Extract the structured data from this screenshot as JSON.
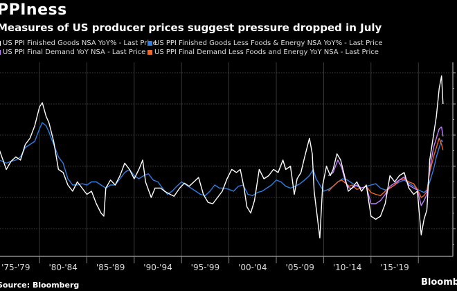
{
  "header": {
    "title": "PPIness",
    "subtitle": "Measures of US producer prices suggest pressure dropped in July"
  },
  "legend": [
    {
      "label": "US PPI Finished Goods NSA YoY% - Last Price",
      "color": "#ffffff"
    },
    {
      "label": "US PPI Final Demand YoY NSA - Last Price",
      "color": "#c77dff"
    },
    {
      "label": "US PPI Finished Goods Less Foods & Energy NSA YoY% - Last Price",
      "color": "#2f7fe0"
    },
    {
      "label": "US PPI Final Demand Less Foods and Energy YoY NSA - Last Price",
      "color": "#f26522"
    }
  ],
  "footer": {
    "source": "Source: Bloomberg",
    "brand": "Bloomberg"
  },
  "chart_data": {
    "type": "line",
    "title": "PPIness",
    "subtitle": "Measures of US producer prices suggest pressure dropped in July",
    "xlabel": "",
    "ylabel": "",
    "x_tick_labels": [
      "'75-'79",
      "'80-'84",
      "'85-'89",
      "'90-'94",
      "'95-'99",
      "'00-'04",
      "'05-'09",
      "'10-'14",
      "'15-'19"
    ],
    "xlim": [
      1975.8,
      2022.6
    ],
    "ylim": [
      -10,
      22
    ],
    "y_gridlines": [
      -5,
      0,
      5,
      10,
      15,
      20
    ],
    "grid": true,
    "legend_position": "top",
    "series": [
      {
        "name": "US PPI Finished Goods NSA YoY% - Last Price",
        "color": "#ffffff",
        "points": [
          [
            1975.8,
            7.5
          ],
          [
            1976.5,
            4.5
          ],
          [
            1977.0,
            5.8
          ],
          [
            1977.5,
            6.5
          ],
          [
            1978.0,
            6.0
          ],
          [
            1978.5,
            8.5
          ],
          [
            1979.0,
            9.5
          ],
          [
            1979.5,
            11.5
          ],
          [
            1980.0,
            14.5
          ],
          [
            1980.3,
            15.2
          ],
          [
            1980.7,
            13.0
          ],
          [
            1981.0,
            12.0
          ],
          [
            1981.5,
            9.0
          ],
          [
            1982.0,
            4.5
          ],
          [
            1982.5,
            4.0
          ],
          [
            1983.0,
            2.0
          ],
          [
            1983.5,
            1.0
          ],
          [
            1984.0,
            2.5
          ],
          [
            1984.5,
            1.5
          ],
          [
            1985.0,
            0.5
          ],
          [
            1985.5,
            1.0
          ],
          [
            1986.0,
            -1.0
          ],
          [
            1986.5,
            -2.5
          ],
          [
            1986.8,
            -3.0
          ],
          [
            1987.0,
            1.5
          ],
          [
            1987.5,
            2.8
          ],
          [
            1988.0,
            2.0
          ],
          [
            1988.5,
            3.5
          ],
          [
            1989.0,
            5.5
          ],
          [
            1989.5,
            4.5
          ],
          [
            1990.0,
            3.0
          ],
          [
            1990.5,
            4.5
          ],
          [
            1990.9,
            6.0
          ],
          [
            1991.2,
            2.5
          ],
          [
            1991.8,
            0.0
          ],
          [
            1992.2,
            1.5
          ],
          [
            1992.8,
            1.5
          ],
          [
            1993.2,
            1.0
          ],
          [
            1993.8,
            0.5
          ],
          [
            1994.2,
            0.2
          ],
          [
            1994.8,
            1.5
          ],
          [
            1995.3,
            2.3
          ],
          [
            1995.8,
            1.8
          ],
          [
            1996.3,
            2.5
          ],
          [
            1996.8,
            3.2
          ],
          [
            1997.3,
            0.5
          ],
          [
            1997.8,
            -0.8
          ],
          [
            1998.3,
            -1.0
          ],
          [
            1998.8,
            0.0
          ],
          [
            1999.3,
            1.0
          ],
          [
            1999.8,
            3.0
          ],
          [
            2000.3,
            4.5
          ],
          [
            2000.8,
            4.0
          ],
          [
            2001.2,
            4.5
          ],
          [
            2001.6,
            1.5
          ],
          [
            2001.9,
            -1.5
          ],
          [
            2002.3,
            -2.5
          ],
          [
            2002.7,
            -0.5
          ],
          [
            2003.2,
            4.5
          ],
          [
            2003.7,
            3.0
          ],
          [
            2004.2,
            3.5
          ],
          [
            2004.7,
            4.5
          ],
          [
            2005.2,
            4.0
          ],
          [
            2005.7,
            6.0
          ],
          [
            2006.0,
            4.5
          ],
          [
            2006.5,
            5.0
          ],
          [
            2006.9,
            0.5
          ],
          [
            2007.2,
            3.0
          ],
          [
            2007.6,
            4.0
          ],
          [
            2008.0,
            6.5
          ],
          [
            2008.5,
            9.5
          ],
          [
            2008.8,
            7.0
          ],
          [
            2009.0,
            1.0
          ],
          [
            2009.4,
            -4.0
          ],
          [
            2009.6,
            -6.5
          ],
          [
            2009.9,
            2.0
          ],
          [
            2010.3,
            5.0
          ],
          [
            2010.7,
            3.5
          ],
          [
            2011.0,
            4.5
          ],
          [
            2011.4,
            7.0
          ],
          [
            2011.8,
            6.0
          ],
          [
            2012.2,
            3.5
          ],
          [
            2012.6,
            1.0
          ],
          [
            2013.0,
            1.5
          ],
          [
            2013.5,
            2.5
          ],
          [
            2014.0,
            1.0
          ],
          [
            2014.5,
            2.0
          ],
          [
            2015.0,
            -3.0
          ],
          [
            2015.5,
            -3.5
          ],
          [
            2016.0,
            -3.0
          ],
          [
            2016.5,
            -1.0
          ],
          [
            2017.0,
            3.5
          ],
          [
            2017.5,
            2.5
          ],
          [
            2018.0,
            3.5
          ],
          [
            2018.5,
            4.0
          ],
          [
            2019.0,
            1.5
          ],
          [
            2019.5,
            0.5
          ],
          [
            2019.9,
            1.0
          ],
          [
            2020.3,
            -6.0
          ],
          [
            2020.6,
            -3.5
          ],
          [
            2020.9,
            -2.0
          ],
          [
            2021.2,
            6.0
          ],
          [
            2021.6,
            10.0
          ],
          [
            2021.9,
            13.0
          ],
          [
            2022.2,
            17.5
          ],
          [
            2022.45,
            19.5
          ],
          [
            2022.6,
            15.0
          ]
        ]
      },
      {
        "name": "US PPI Final Demand YoY NSA - Last Price",
        "color": "#c77dff",
        "points": [
          [
            2010.5,
            3.5
          ],
          [
            2011.0,
            4.0
          ],
          [
            2011.5,
            6.0
          ],
          [
            2011.9,
            4.8
          ],
          [
            2012.3,
            2.5
          ],
          [
            2012.7,
            1.5
          ],
          [
            2013.0,
            1.5
          ],
          [
            2013.5,
            2.0
          ],
          [
            2014.0,
            1.5
          ],
          [
            2014.5,
            1.8
          ],
          [
            2015.0,
            -1.0
          ],
          [
            2015.5,
            -1.0
          ],
          [
            2016.0,
            -0.5
          ],
          [
            2016.5,
            0.5
          ],
          [
            2017.0,
            1.8
          ],
          [
            2017.5,
            2.3
          ],
          [
            2018.0,
            2.8
          ],
          [
            2018.5,
            3.3
          ],
          [
            2019.0,
            2.0
          ],
          [
            2019.5,
            1.5
          ],
          [
            2019.9,
            1.2
          ],
          [
            2020.3,
            -1.3
          ],
          [
            2020.6,
            -0.5
          ],
          [
            2020.9,
            0.5
          ],
          [
            2021.2,
            4.5
          ],
          [
            2021.6,
            8.0
          ],
          [
            2021.9,
            9.5
          ],
          [
            2022.2,
            11.0
          ],
          [
            2022.45,
            11.3
          ],
          [
            2022.6,
            9.8
          ]
        ]
      },
      {
        "name": "US PPI Finished Goods Less Foods & Energy NSA YoY% - Last Price",
        "color": "#2f7fe0",
        "points": [
          [
            1975.8,
            6.0
          ],
          [
            1976.5,
            5.5
          ],
          [
            1977.0,
            5.8
          ],
          [
            1977.5,
            6.0
          ],
          [
            1978.0,
            6.5
          ],
          [
            1978.5,
            8.0
          ],
          [
            1979.0,
            8.5
          ],
          [
            1979.5,
            9.0
          ],
          [
            1980.0,
            11.0
          ],
          [
            1980.3,
            12.0
          ],
          [
            1980.7,
            11.5
          ],
          [
            1981.0,
            10.5
          ],
          [
            1981.5,
            8.5
          ],
          [
            1982.0,
            6.5
          ],
          [
            1982.5,
            5.5
          ],
          [
            1983.0,
            3.0
          ],
          [
            1983.5,
            2.0
          ],
          [
            1984.0,
            2.0
          ],
          [
            1984.5,
            2.2
          ],
          [
            1985.0,
            2.0
          ],
          [
            1985.5,
            2.5
          ],
          [
            1986.0,
            2.5
          ],
          [
            1986.5,
            2.0
          ],
          [
            1987.0,
            1.5
          ],
          [
            1987.5,
            2.0
          ],
          [
            1988.0,
            2.0
          ],
          [
            1988.5,
            3.0
          ],
          [
            1989.0,
            4.0
          ],
          [
            1989.5,
            4.5
          ],
          [
            1990.0,
            3.5
          ],
          [
            1990.5,
            3.0
          ],
          [
            1991.0,
            3.5
          ],
          [
            1991.5,
            3.8
          ],
          [
            1992.0,
            2.8
          ],
          [
            1992.5,
            2.5
          ],
          [
            1993.0,
            1.5
          ],
          [
            1993.5,
            0.5
          ],
          [
            1994.0,
            1.0
          ],
          [
            1994.5,
            1.8
          ],
          [
            1995.0,
            2.5
          ],
          [
            1995.5,
            2.0
          ],
          [
            1996.0,
            1.5
          ],
          [
            1996.5,
            1.0
          ],
          [
            1997.0,
            0.5
          ],
          [
            1997.5,
            0.3
          ],
          [
            1998.0,
            1.0
          ],
          [
            1998.5,
            2.0
          ],
          [
            1999.0,
            1.5
          ],
          [
            1999.5,
            1.5
          ],
          [
            2000.0,
            1.3
          ],
          [
            2000.5,
            1.0
          ],
          [
            2001.0,
            1.8
          ],
          [
            2001.5,
            2.0
          ],
          [
            2002.0,
            0.5
          ],
          [
            2002.5,
            0.3
          ],
          [
            2003.0,
            0.8
          ],
          [
            2003.5,
            1.0
          ],
          [
            2004.0,
            1.5
          ],
          [
            2004.5,
            2.0
          ],
          [
            2005.0,
            2.8
          ],
          [
            2005.5,
            2.5
          ],
          [
            2006.0,
            1.8
          ],
          [
            2006.5,
            1.5
          ],
          [
            2007.0,
            1.8
          ],
          [
            2007.5,
            2.2
          ],
          [
            2008.0,
            2.8
          ],
          [
            2008.5,
            3.5
          ],
          [
            2008.9,
            4.5
          ],
          [
            2009.2,
            3.0
          ],
          [
            2009.6,
            2.0
          ],
          [
            2010.0,
            1.0
          ],
          [
            2010.5,
            1.3
          ],
          [
            2011.0,
            1.8
          ],
          [
            2011.5,
            2.5
          ],
          [
            2012.0,
            3.0
          ],
          [
            2012.5,
            2.8
          ],
          [
            2013.0,
            2.3
          ],
          [
            2013.5,
            1.8
          ],
          [
            2014.0,
            1.5
          ],
          [
            2014.5,
            1.8
          ],
          [
            2015.0,
            2.0
          ],
          [
            2015.5,
            2.2
          ],
          [
            2016.0,
            1.5
          ],
          [
            2016.5,
            1.2
          ],
          [
            2017.0,
            1.5
          ],
          [
            2017.5,
            2.0
          ],
          [
            2018.0,
            2.5
          ],
          [
            2018.5,
            2.8
          ],
          [
            2019.0,
            2.3
          ],
          [
            2019.5,
            1.8
          ],
          [
            2019.9,
            1.3
          ],
          [
            2020.3,
            1.0
          ],
          [
            2020.6,
            0.8
          ],
          [
            2020.9,
            1.2
          ],
          [
            2021.2,
            2.5
          ],
          [
            2021.6,
            4.5
          ],
          [
            2021.9,
            6.5
          ],
          [
            2022.2,
            8.0
          ],
          [
            2022.45,
            9.2
          ],
          [
            2022.6,
            8.9
          ]
        ]
      },
      {
        "name": "US PPI Final Demand Less Foods and Energy YoY NSA - Last Price",
        "color": "#f26522",
        "points": [
          [
            2010.5,
            1.0
          ],
          [
            2011.0,
            1.8
          ],
          [
            2011.5,
            2.5
          ],
          [
            2011.9,
            2.8
          ],
          [
            2012.3,
            2.3
          ],
          [
            2012.7,
            1.8
          ],
          [
            2013.0,
            2.0
          ],
          [
            2013.5,
            1.3
          ],
          [
            2014.0,
            1.5
          ],
          [
            2014.5,
            1.8
          ],
          [
            2015.0,
            0.8
          ],
          [
            2015.5,
            0.5
          ],
          [
            2016.0,
            0.3
          ],
          [
            2016.5,
            1.0
          ],
          [
            2017.0,
            1.5
          ],
          [
            2017.5,
            2.0
          ],
          [
            2018.0,
            2.8
          ],
          [
            2018.5,
            3.0
          ],
          [
            2019.0,
            2.5
          ],
          [
            2019.5,
            2.2
          ],
          [
            2019.9,
            1.3
          ],
          [
            2020.3,
            0.0
          ],
          [
            2020.6,
            0.3
          ],
          [
            2020.9,
            1.0
          ],
          [
            2021.2,
            4.0
          ],
          [
            2021.6,
            6.5
          ],
          [
            2021.9,
            8.0
          ],
          [
            2022.2,
            9.5
          ],
          [
            2022.45,
            8.5
          ],
          [
            2022.6,
            7.6
          ]
        ]
      }
    ]
  }
}
